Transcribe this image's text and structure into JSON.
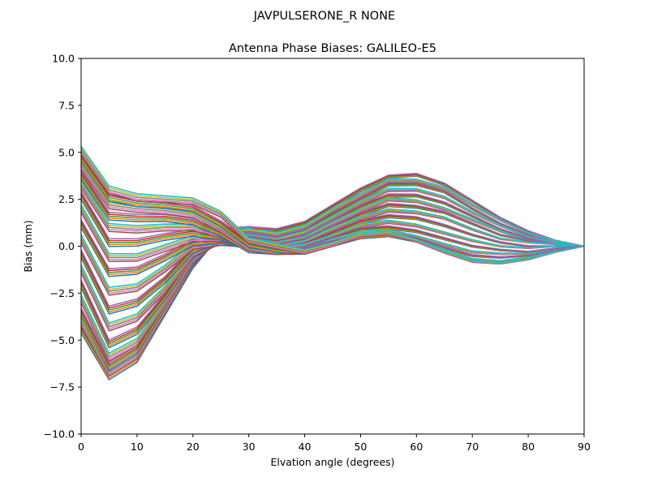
{
  "figure": {
    "suptitle": "JAVPULSERONE_R  NONE"
  },
  "chart_data": {
    "type": "line",
    "title": "Antenna Phase Biases: GALILEO-E5",
    "xlabel": "Elvation angle (degrees)",
    "ylabel": "Bias (mm)",
    "xlim": [
      0,
      90
    ],
    "ylim": [
      -10,
      10
    ],
    "x_ticks": [
      0,
      10,
      20,
      30,
      40,
      50,
      60,
      70,
      80,
      90
    ],
    "y_ticks": [
      -10,
      -7.5,
      -5,
      -2.5,
      0,
      2.5,
      5,
      7.5,
      10
    ],
    "x_tick_labels": [
      "0",
      "10",
      "20",
      "30",
      "40",
      "50",
      "60",
      "70",
      "80",
      "90"
    ],
    "y_tick_labels": [
      "−10.0",
      "−7.5",
      "−5.0",
      "−2.5",
      "0.0",
      "2.5",
      "5.0",
      "7.5",
      "10.0"
    ],
    "x": [
      0,
      5,
      10,
      15,
      20,
      25,
      30,
      35,
      40,
      45,
      50,
      55,
      60,
      65,
      70,
      75,
      80,
      85,
      90
    ],
    "grid": false,
    "legend": "none",
    "palette": [
      "#1f77b4",
      "#ff7f0e",
      "#2ca02c",
      "#d62728",
      "#9467bd",
      "#8c564b",
      "#e377c2",
      "#7f7f7f",
      "#bcbd22",
      "#17becf"
    ],
    "series": [
      {
        "values": [
          -4.4,
          -6.9,
          -6.0,
          -3.5,
          -1.0,
          0.8,
          0.9,
          0.8,
          1.2,
          2.1,
          3.0,
          3.7,
          3.8,
          3.3,
          2.4,
          1.5,
          0.8,
          0.3,
          0.0
        ]
      },
      {
        "values": [
          -4.0,
          -6.7,
          -5.8,
          -3.4,
          -0.9,
          0.7,
          0.8,
          0.6,
          1.0,
          1.9,
          2.7,
          3.5,
          3.5,
          3.1,
          2.2,
          1.4,
          0.7,
          0.3,
          0.0
        ]
      },
      {
        "values": [
          -3.5,
          -6.4,
          -5.5,
          -3.2,
          -0.8,
          0.6,
          0.6,
          0.4,
          0.8,
          1.7,
          2.5,
          3.3,
          3.3,
          2.9,
          2.0,
          1.2,
          0.6,
          0.2,
          0.0
        ]
      },
      {
        "values": [
          -2.8,
          -5.9,
          -5.1,
          -3.0,
          -0.7,
          0.5,
          0.5,
          0.3,
          0.7,
          1.5,
          2.3,
          3.0,
          3.0,
          2.6,
          1.8,
          1.1,
          0.5,
          0.2,
          0.0
        ]
      },
      {
        "values": [
          -2.0,
          -5.2,
          -4.5,
          -2.7,
          -0.5,
          0.4,
          0.4,
          0.2,
          0.5,
          1.3,
          2.1,
          2.7,
          2.7,
          2.3,
          1.6,
          0.9,
          0.4,
          0.1,
          0.0
        ]
      },
      {
        "values": [
          -1.2,
          -4.3,
          -3.8,
          -2.3,
          -0.4,
          0.3,
          0.3,
          0.1,
          0.4,
          1.2,
          1.9,
          2.5,
          2.4,
          2.0,
          1.4,
          0.8,
          0.3,
          0.1,
          0.0
        ]
      },
      {
        "values": [
          -0.4,
          -3.4,
          -3.0,
          -1.8,
          -0.2,
          0.3,
          0.2,
          0.0,
          0.3,
          1.0,
          1.7,
          2.2,
          2.1,
          1.8,
          1.2,
          0.6,
          0.3,
          0.1,
          0.0
        ]
      },
      {
        "values": [
          0.4,
          -2.4,
          -2.2,
          -1.2,
          0.0,
          0.2,
          0.1,
          -0.1,
          0.2,
          0.9,
          1.5,
          1.9,
          1.8,
          1.5,
          0.9,
          0.4,
          0.2,
          0.1,
          0.0
        ]
      },
      {
        "values": [
          1.2,
          -1.4,
          -1.3,
          -0.6,
          0.2,
          0.3,
          0.0,
          -0.2,
          0.1,
          0.7,
          1.3,
          1.6,
          1.5,
          1.1,
          0.6,
          0.2,
          0.0,
          0.0,
          0.0
        ]
      },
      {
        "values": [
          2.0,
          -0.6,
          -0.6,
          -0.1,
          0.4,
          0.4,
          0.0,
          -0.2,
          0.0,
          0.5,
          1.1,
          1.3,
          1.1,
          0.7,
          0.3,
          0.0,
          -0.1,
          0.0,
          0.0
        ]
      },
      {
        "values": [
          2.7,
          0.2,
          0.2,
          0.5,
          0.7,
          0.5,
          -0.1,
          -0.3,
          -0.1,
          0.4,
          0.9,
          1.0,
          0.8,
          0.4,
          0.0,
          -0.2,
          -0.3,
          -0.1,
          0.0
        ]
      },
      {
        "values": [
          3.3,
          1.0,
          0.9,
          1.0,
          1.0,
          0.6,
          -0.1,
          -0.3,
          -0.2,
          0.3,
          0.7,
          0.8,
          0.5,
          0.1,
          -0.3,
          -0.4,
          -0.4,
          -0.2,
          0.0
        ]
      },
      {
        "values": [
          3.8,
          1.6,
          1.5,
          1.5,
          1.3,
          0.7,
          -0.2,
          -0.3,
          -0.2,
          0.2,
          0.6,
          0.7,
          0.4,
          -0.1,
          -0.5,
          -0.6,
          -0.5,
          -0.2,
          0.0
        ]
      },
      {
        "values": [
          4.3,
          2.2,
          2.0,
          1.9,
          1.7,
          0.9,
          -0.1,
          -0.3,
          -0.3,
          0.1,
          0.5,
          0.6,
          0.3,
          -0.2,
          -0.7,
          -0.8,
          -0.6,
          -0.3,
          0.0
        ]
      },
      {
        "values": [
          4.7,
          2.6,
          2.3,
          2.2,
          2.0,
          1.2,
          0.1,
          -0.2,
          -0.3,
          0.1,
          0.5,
          0.6,
          0.3,
          -0.3,
          -0.8,
          -0.9,
          -0.7,
          -0.3,
          0.0
        ]
      },
      {
        "values": [
          5.1,
          3.0,
          2.6,
          2.5,
          2.4,
          1.7,
          0.3,
          0.0,
          -0.3,
          0.1,
          0.6,
          0.7,
          0.3,
          -0.3,
          -0.8,
          -0.9,
          -0.7,
          -0.3,
          0.0
        ]
      }
    ]
  }
}
